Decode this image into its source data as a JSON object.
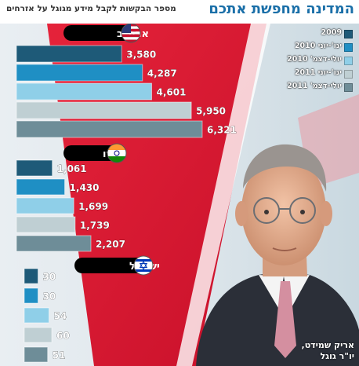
{
  "header": {
    "title": "המדינה מחפשת אתכם",
    "subtitle": "מספר הבקשות לקבל מידע מגוגל על אזרחים"
  },
  "caption": {
    "name": "אריק שמידט,",
    "role": "יו\"ר גוגל"
  },
  "colors": {
    "series": [
      "#1e5a78",
      "#1f8fc4",
      "#8fcfe8",
      "#bfcfd3",
      "#6e8d98"
    ],
    "title": "#1a6fa8",
    "panel_label_bg": "#000000"
  },
  "chart_data": {
    "type": "bar",
    "orientation": "horizontal",
    "title": "המדינה מחפשת אתכם",
    "subtitle": "מספר הבקשות לקבל מידע מגוגל על אזרחים",
    "series_names": [
      "2009",
      "ינו'-יוני 2010",
      "יולי-דצמ' 2010",
      "ינו'-יוני 2011",
      "יולי-דצמ' 2011"
    ],
    "legend_position": "top-right",
    "panels": [
      {
        "name": "ארה\"ב",
        "flag": "usa-flag-icon",
        "values": [
          3580,
          4287,
          4601,
          5950,
          6321
        ],
        "labels": [
          "3,580",
          "4,287",
          "4,601",
          "5,950",
          "6,321"
        ]
      },
      {
        "name": "הודו",
        "flag": "india-flag-icon",
        "values": [
          1061,
          1430,
          1699,
          1739,
          2207
        ],
        "labels": [
          "1,061",
          "1,430",
          "1,699",
          "1,739",
          "2,207"
        ]
      },
      {
        "name": "ישראל",
        "flag": "israel-flag-icon",
        "values": [
          30,
          30,
          54,
          60,
          51
        ],
        "labels": [
          "30",
          "30",
          "54",
          "60",
          "51"
        ]
      }
    ]
  }
}
